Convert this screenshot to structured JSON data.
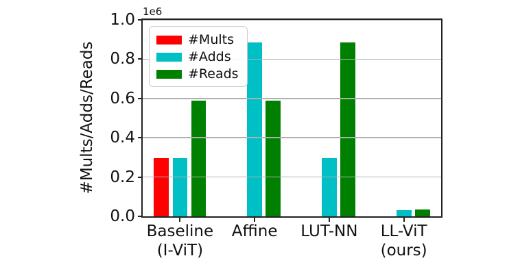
{
  "chart_data": {
    "type": "bar",
    "title": "",
    "xlabel": "",
    "ylabel": "#Mults/Adds/Reads",
    "offset_text": "1e6",
    "categories": [
      "Baseline\n(I-ViT)",
      "Affine",
      "LUT-NN",
      "LL-ViT\n(ours)"
    ],
    "series": [
      {
        "name": "#Mults",
        "color": "#ff0000",
        "values": [
          295000,
          0,
          0,
          0
        ]
      },
      {
        "name": "#Adds",
        "color": "#00bfc5",
        "values": [
          295000,
          885000,
          295000,
          33000
        ]
      },
      {
        "name": "#Reads",
        "color": "#008000",
        "values": [
          590000,
          590000,
          885000,
          36000
        ]
      }
    ],
    "ylim": [
      0,
      1000000
    ],
    "yticks": [
      0,
      200000,
      400000,
      600000,
      800000,
      1000000
    ],
    "yticklabels": [
      "0.0",
      "0.2",
      "0.4",
      "0.6",
      "0.8",
      "1.0"
    ],
    "legend_position": "upper left",
    "grid": true,
    "grid_color": "#b0b0b0",
    "spine_color": "#222222",
    "bar_width_fraction": 0.2,
    "group_offsets": [
      -0.25,
      0,
      0.25
    ],
    "background": "#ffffff"
  }
}
